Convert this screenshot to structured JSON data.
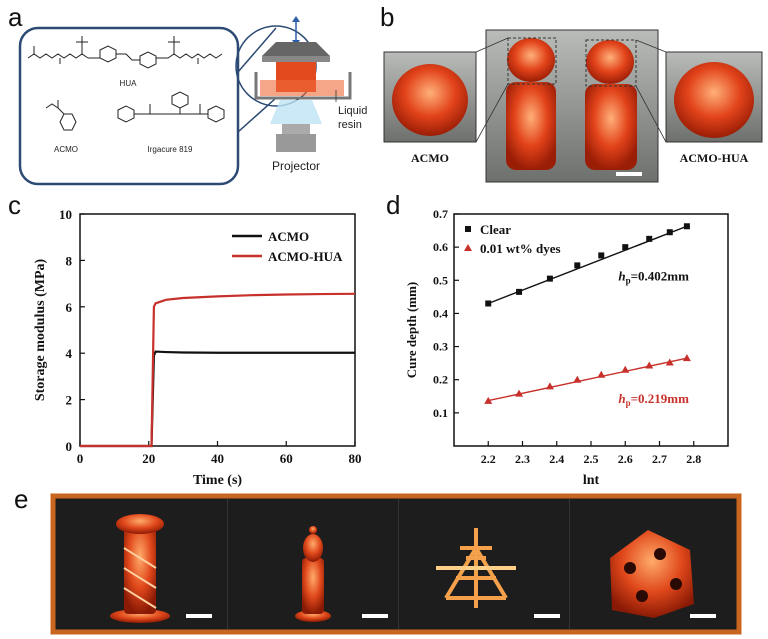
{
  "panels": {
    "a": {
      "letter": "a",
      "molecules": [
        "HUA",
        "ACMO",
        "Irgacure 819"
      ],
      "labels": {
        "resin": [
          "Liquid",
          "resin"
        ],
        "projector": "Projector"
      }
    },
    "b": {
      "letter": "b",
      "labels": {
        "left": "ACMO",
        "right": "ACMO-HUA"
      }
    },
    "c": {
      "letter": "c"
    },
    "d": {
      "letter": "d"
    },
    "e": {
      "letter": "e"
    }
  },
  "colors": {
    "black_series": "#111111",
    "red_series": "#c8312b",
    "frame": "#c8651e",
    "resin": "#e24a1d"
  },
  "chart_data": [
    {
      "id": "c",
      "type": "line",
      "xlabel": "Time (s)",
      "ylabel": "Storage modulus (MPa)",
      "xlim": [
        0,
        80
      ],
      "ylim": [
        0,
        10
      ],
      "xticks": [
        0,
        20,
        40,
        60,
        80
      ],
      "yticks": [
        0,
        2,
        4,
        6,
        8,
        10
      ],
      "legend": "top-right",
      "series": [
        {
          "name": "ACMO",
          "color": "#111111",
          "x": [
            0,
            20,
            20.8,
            21.5,
            22,
            25,
            30,
            40,
            60,
            80
          ],
          "y": [
            0,
            0,
            0,
            3.9,
            4.07,
            4.05,
            4.03,
            4.02,
            4.02,
            4.02
          ]
        },
        {
          "name": "ACMO-HUA",
          "color": "#c8312b",
          "x": [
            0,
            20,
            20.8,
            21.5,
            22,
            25,
            30,
            40,
            50,
            60,
            70,
            80
          ],
          "y": [
            0,
            0,
            0,
            6.0,
            6.15,
            6.3,
            6.38,
            6.45,
            6.5,
            6.53,
            6.55,
            6.56
          ]
        }
      ]
    },
    {
      "id": "d",
      "type": "scatter",
      "xlabel": "lnt",
      "ylabel": "Cure depth (mm)",
      "xlim": [
        2.1,
        2.9
      ],
      "ylim": [
        0.0,
        0.7
      ],
      "xticks": [
        2.2,
        2.3,
        2.4,
        2.5,
        2.6,
        2.7,
        2.8
      ],
      "yticks": [
        0.1,
        0.2,
        0.3,
        0.4,
        0.5,
        0.6,
        0.7
      ],
      "legend": "top-left",
      "series": [
        {
          "name": "Clear",
          "marker": "square",
          "color": "#111111",
          "x": [
            2.2,
            2.29,
            2.38,
            2.46,
            2.53,
            2.6,
            2.67,
            2.73,
            2.78
          ],
          "y": [
            0.43,
            0.465,
            0.505,
            0.545,
            0.575,
            0.6,
            0.625,
            0.645,
            0.663
          ],
          "fit": {
            "x": [
              2.2,
              2.78
            ],
            "y": [
              0.43,
              0.663
            ]
          },
          "annotation": "=0.402mm"
        },
        {
          "name": "0.01 wt% dyes",
          "marker": "triangle",
          "color": "#c8312b",
          "x": [
            2.2,
            2.29,
            2.38,
            2.46,
            2.53,
            2.6,
            2.67,
            2.73,
            2.78
          ],
          "y": [
            0.136,
            0.158,
            0.18,
            0.2,
            0.215,
            0.23,
            0.243,
            0.252,
            0.265
          ],
          "fit": {
            "x": [
              2.2,
              2.78
            ],
            "y": [
              0.137,
              0.265
            ]
          },
          "annotation": "=0.219mm"
        }
      ],
      "hp_prefix": "h",
      "hp_sub": "p"
    }
  ]
}
